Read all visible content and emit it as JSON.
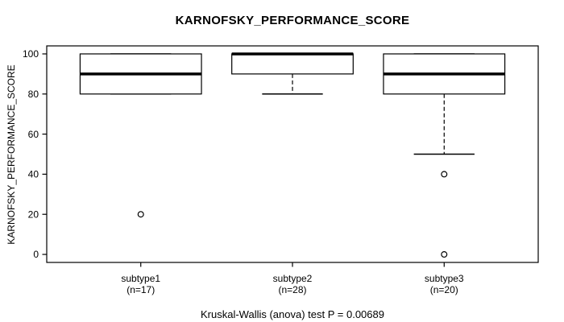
{
  "chart_data": {
    "type": "box",
    "title": "KARNOFSKY_PERFORMANCE_SCORE",
    "ylabel": "KARNOFSKY_PERFORMANCE_SCORE",
    "footer": "Kruskal-Wallis (anova) test P = 0.00689",
    "ylim": [
      0,
      100
    ],
    "yticks": [
      0,
      20,
      40,
      60,
      80,
      100
    ],
    "categories": [
      "subtype1",
      "subtype2",
      "subtype3"
    ],
    "sublabels": [
      "(n=17)",
      "(n=28)",
      "(n=20)"
    ],
    "grid": false,
    "legend": "none",
    "colors": {
      "line": "#000000",
      "background": "#ffffff"
    },
    "groups": [
      {
        "label": "subtype1",
        "n": 17,
        "q1": 80,
        "median": 90,
        "q3": 100,
        "whisker_low": 80,
        "whisker_high": 100,
        "outliers": [
          20
        ]
      },
      {
        "label": "subtype2",
        "n": 28,
        "q1": 90,
        "median": 100,
        "q3": 100,
        "whisker_low": 80,
        "whisker_high": 100,
        "outliers": []
      },
      {
        "label": "subtype3",
        "n": 20,
        "q1": 80,
        "median": 90,
        "q3": 100,
        "whisker_low": 50,
        "whisker_high": 100,
        "outliers": [
          40,
          0
        ]
      }
    ]
  }
}
